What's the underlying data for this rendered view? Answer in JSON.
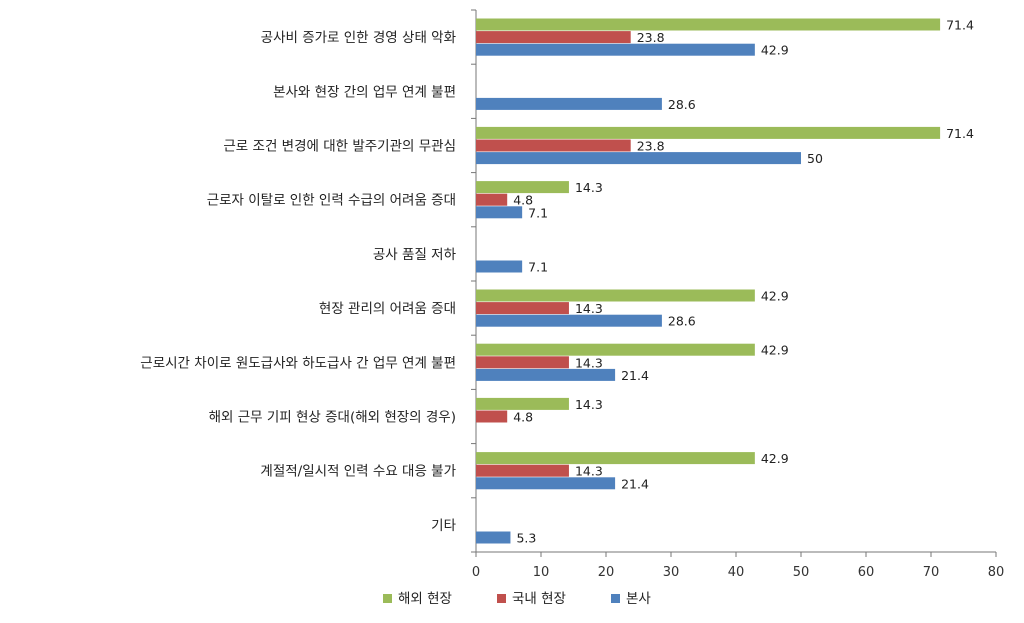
{
  "chart_data": {
    "type": "bar",
    "orientation": "horizontal",
    "categories": [
      "공사비 증가로 인한 경영 상태 악화",
      "본사와 현장 간의 업무 연계 불편",
      "근로 조건 변경에 대한 발주기관의 무관심",
      "근로자 이탈로 인한 인력 수급의 어려움 증대",
      "공사 품질 저하",
      "현장 관리의 어려움 증대",
      "근로시간 차이로 원도급사와 하도급사 간 업무 연계 불편",
      "해외 근무 기피 현상 증대(해외 현장의 경우)",
      "계절적/일시적 인력 수요 대응 불가",
      "기타"
    ],
    "series": [
      {
        "name": "해외 현장",
        "color": "#9BBB59",
        "values": [
          71.4,
          null,
          71.4,
          14.3,
          null,
          42.9,
          42.9,
          14.3,
          42.9,
          null
        ],
        "labels": [
          "71.4",
          "",
          "71.4",
          "14.3",
          "",
          "42.9",
          "42.9",
          "14.3",
          "42.9",
          ""
        ]
      },
      {
        "name": "국내 현장",
        "color": "#C0504D",
        "values": [
          23.8,
          null,
          23.8,
          4.8,
          null,
          14.3,
          14.3,
          4.8,
          14.3,
          null
        ],
        "labels": [
          "23.8",
          "",
          "23.8",
          "4.8",
          "",
          "14.3",
          "14.3",
          "4.8",
          "14.3",
          ""
        ]
      },
      {
        "name": "본사",
        "color": "#4F81BD",
        "values": [
          42.9,
          28.6,
          50,
          7.1,
          7.1,
          28.6,
          21.4,
          null,
          21.4,
          5.3
        ],
        "labels": [
          "42.9",
          "28.6",
          "50",
          "7.1",
          "7.1",
          "28.6",
          "21.4",
          "",
          "21.4",
          "5.3"
        ]
      }
    ],
    "x_ticks": [
      "0",
      "10",
      "20",
      "30",
      "40",
      "50",
      "60",
      "70",
      "80"
    ],
    "xlim": [
      0,
      80
    ],
    "grid": false,
    "legend_position": "bottom",
    "title": "",
    "xlabel": "",
    "ylabel": ""
  }
}
